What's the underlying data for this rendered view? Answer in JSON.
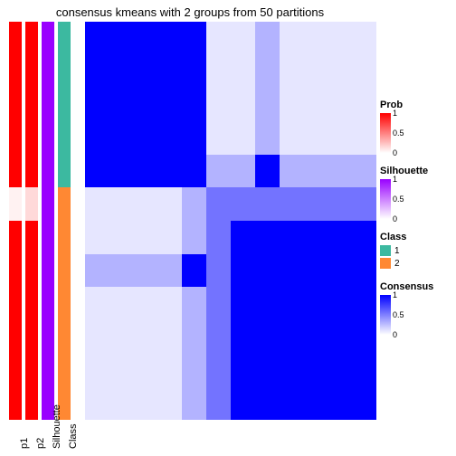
{
  "title": "consensus kmeans with 2 groups from 50 partitions",
  "layout": {
    "track_width": 14,
    "track_gap": 4,
    "heatmap_gap": 12,
    "heatmap_width": 322,
    "heatmap_height": 440,
    "n": 12,
    "split_at": 5
  },
  "tracks": [
    {
      "name": "p1",
      "values": [
        1,
        1,
        1,
        1,
        1,
        0.05,
        1,
        1,
        1,
        1,
        1,
        1
      ],
      "scale": {
        "type": "gradient",
        "low": "#ffffff",
        "high": "#ff0000"
      }
    },
    {
      "name": "p2",
      "values": [
        1,
        1,
        1,
        1,
        1,
        0.15,
        1,
        1,
        1,
        1,
        1,
        1
      ],
      "scale": {
        "type": "gradient",
        "low": "#ffffff",
        "high": "#ff0000"
      }
    },
    {
      "name": "Silhouette",
      "values": [
        1,
        1,
        1,
        1,
        1,
        1,
        1,
        1,
        1,
        1,
        1,
        1
      ],
      "scale": {
        "type": "gradient",
        "low": "#ffffff",
        "high": "#9900ff"
      }
    },
    {
      "name": "Class",
      "values": [
        1,
        1,
        1,
        1,
        1,
        2,
        2,
        2,
        2,
        2,
        2,
        2
      ],
      "scale": {
        "type": "discrete",
        "map": {
          "1": "#3cb9a0",
          "2": "#ff8833"
        }
      }
    }
  ],
  "heatmap": {
    "scale": {
      "type": "gradient",
      "low": "#ffffff",
      "high": "#0000ff"
    },
    "block11": 1.0,
    "block12_row": [
      0.1,
      0.1,
      0.3,
      0.1,
      0.1,
      0.1,
      0.1
    ],
    "block21_col": [
      0.1,
      0.1,
      0.3,
      0.1,
      0.1,
      0.1,
      0.1
    ],
    "block12_row_special": [
      0.3,
      0.3,
      1.0,
      0.3,
      0.3,
      0.3,
      0.3
    ],
    "block22_base": 1.0,
    "block22_edge": 0.55
  },
  "xlabels": [
    "p1",
    "p2",
    "Silhouette",
    "Class"
  ],
  "legends": {
    "prob": {
      "title": "Prob",
      "low": "#ffffff",
      "high": "#ff0000",
      "ticks": [
        {
          "v": "1",
          "p": 0
        },
        {
          "v": "0.5",
          "p": 50
        },
        {
          "v": "0",
          "p": 100
        }
      ]
    },
    "silhouette": {
      "title": "Silhouette",
      "low": "#ffffff",
      "high": "#9900ff",
      "ticks": [
        {
          "v": "1",
          "p": 0
        },
        {
          "v": "0.5",
          "p": 50
        },
        {
          "v": "0",
          "p": 100
        }
      ]
    },
    "class": {
      "title": "Class",
      "items": [
        {
          "label": "1",
          "color": "#3cb9a0"
        },
        {
          "label": "2",
          "color": "#ff8833"
        }
      ]
    },
    "consensus": {
      "title": "Consensus",
      "low": "#ffffff",
      "high": "#0000ff",
      "ticks": [
        {
          "v": "1",
          "p": 0
        },
        {
          "v": "0.5",
          "p": 50
        },
        {
          "v": "0",
          "p": 100
        }
      ]
    }
  }
}
